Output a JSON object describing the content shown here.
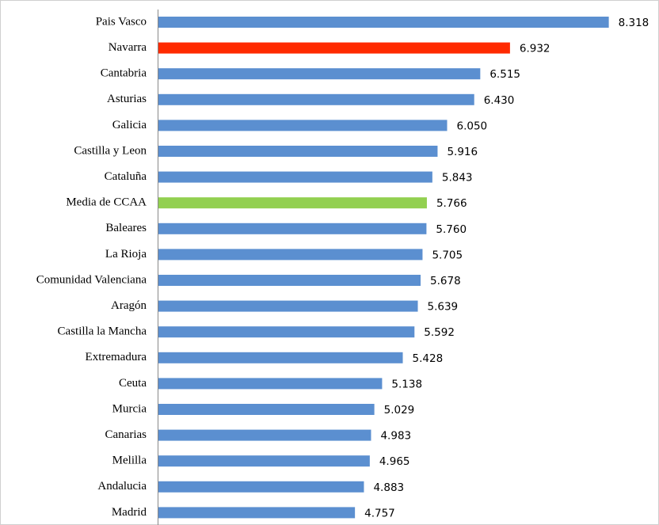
{
  "chart_data": {
    "type": "bar",
    "orientation": "horizontal",
    "categories": [
      "Pais Vasco",
      "Navarra",
      "Cantabria",
      "Asturias",
      "Galicia",
      "Castilla y Leon",
      "Cataluña",
      "Media de CCAA",
      "Baleares",
      "La Rioja",
      "Comunidad Valenciana",
      "Aragón",
      "Castilla la Mancha",
      "Extremadura",
      "Ceuta",
      "Murcia",
      "Canarias",
      "Melilla",
      "Andalucia",
      "Madrid"
    ],
    "values": [
      8.318,
      6.932,
      6.515,
      6.43,
      6.05,
      5.916,
      5.843,
      5.766,
      5.76,
      5.705,
      5.678,
      5.639,
      5.592,
      5.428,
      5.138,
      5.029,
      4.983,
      4.965,
      4.883,
      4.757
    ],
    "value_labels": [
      "8.318",
      "6.932",
      "6.515",
      "6.430",
      "6.050",
      "5.916",
      "5.843",
      "5.766",
      "5.760",
      "5.705",
      "5.678",
      "5.639",
      "5.592",
      "5.428",
      "5.138",
      "5.029",
      "4.983",
      "4.965",
      "4.883",
      "4.757"
    ],
    "colors": [
      "#5b8fd0",
      "#ff2a00",
      "#5b8fd0",
      "#5b8fd0",
      "#5b8fd0",
      "#5b8fd0",
      "#5b8fd0",
      "#92d050",
      "#5b8fd0",
      "#5b8fd0",
      "#5b8fd0",
      "#5b8fd0",
      "#5b8fd0",
      "#5b8fd0",
      "#5b8fd0",
      "#5b8fd0",
      "#5b8fd0",
      "#5b8fd0",
      "#5b8fd0",
      "#5b8fd0"
    ],
    "xlim": [
      2,
      9
    ]
  }
}
